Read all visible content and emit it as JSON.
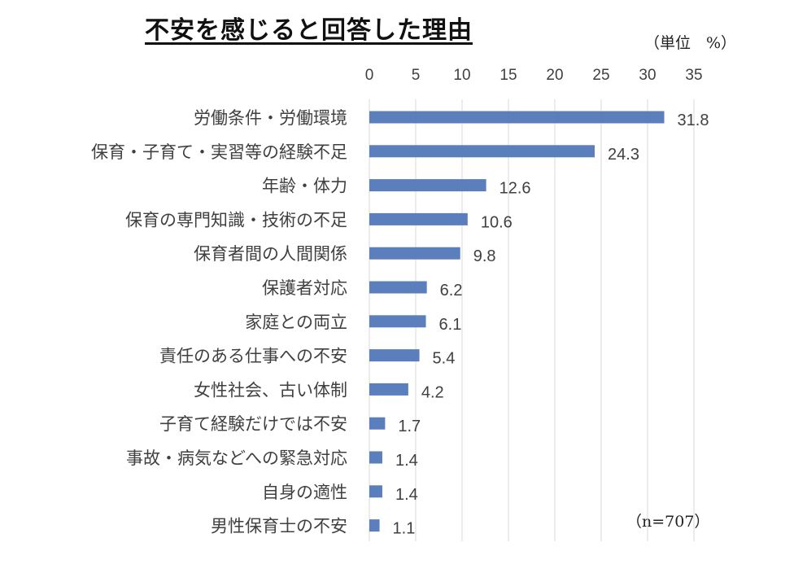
{
  "chart_data": {
    "type": "bar",
    "orientation": "horizontal",
    "title": "不安を感じると回答した理由",
    "unit_label": "（単位　%）",
    "note": "（n=707）",
    "xlim": [
      0,
      35
    ],
    "xticks": [
      "0",
      "5",
      "10",
      "15",
      "20",
      "25",
      "30",
      "35"
    ],
    "grid": true,
    "bar_color": "#5b7fbd",
    "categories": [
      "労働条件・労働環境",
      "保育・子育て・実習等の経験不足",
      "年齢・体力",
      "保育の専門知識・技術の不足",
      "保育者間の人間関係",
      "保護者対応",
      "家庭との両立",
      "責任のある仕事への不安",
      "女性社会、古い体制",
      "子育て経験だけでは不安",
      "事故・病気などへの緊急対応",
      "自身の適性",
      "男性保育士の不安"
    ],
    "values": [
      31.8,
      24.3,
      12.6,
      10.6,
      9.8,
      6.2,
      6.1,
      5.4,
      4.2,
      1.7,
      1.4,
      1.4,
      1.1
    ],
    "value_labels": [
      "31.8",
      "24.3",
      "12.6",
      "10.6",
      "9.8",
      "6.2",
      "6.1",
      "5.4",
      "4.2",
      "1.7",
      "1.4",
      "1.4",
      "1.1"
    ]
  }
}
